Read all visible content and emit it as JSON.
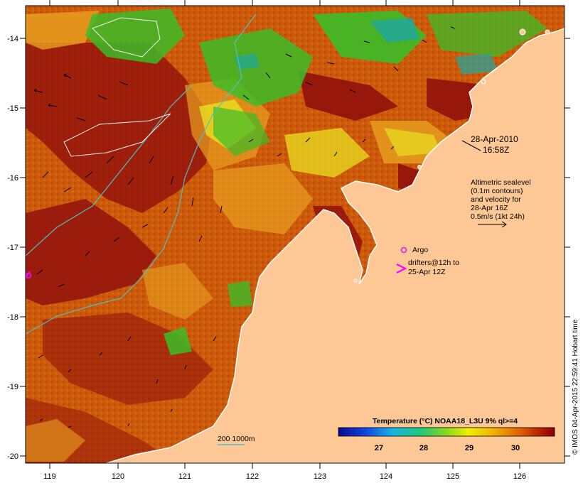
{
  "map": {
    "date_label": "28-Apr-2010",
    "time_label": "16:58Z",
    "altimetry_note": [
      "Altimetric sealevel",
      "(0.1m contours)",
      "and velocity for",
      "28-Apr 16Z",
      "0.5m/s (1kt 24h)"
    ],
    "argo_label": "Argo",
    "drifter_label": [
      "drifters@12h to",
      "25-Apr 12Z"
    ],
    "isobath_label": "200  1000m",
    "credit": "© IMOS 04-Apr-2015 22:59:41 Hobart time",
    "axes": {
      "x_ticks": [
        "119",
        "120",
        "121",
        "122",
        "123",
        "124",
        "125",
        "126"
      ],
      "y_ticks": [
        "-14",
        "-15",
        "-16",
        "-17",
        "-18",
        "-19",
        "-20"
      ]
    },
    "colorbar": {
      "title": "Temperature (°C) NOAA18_L3U 9% ql>=4",
      "tick_labels": [
        "27",
        "28",
        "29",
        "30"
      ]
    },
    "colors": {
      "land": "#fdc895",
      "sst_hot": "#8e0c0c",
      "sst_warm": "#c85000",
      "sst_mid": "#e8a020",
      "sst_cool": "#3cbc28",
      "isobath": "#4ec0c0",
      "argo": "#e020e0",
      "drifter": "#ff00ff"
    }
  }
}
